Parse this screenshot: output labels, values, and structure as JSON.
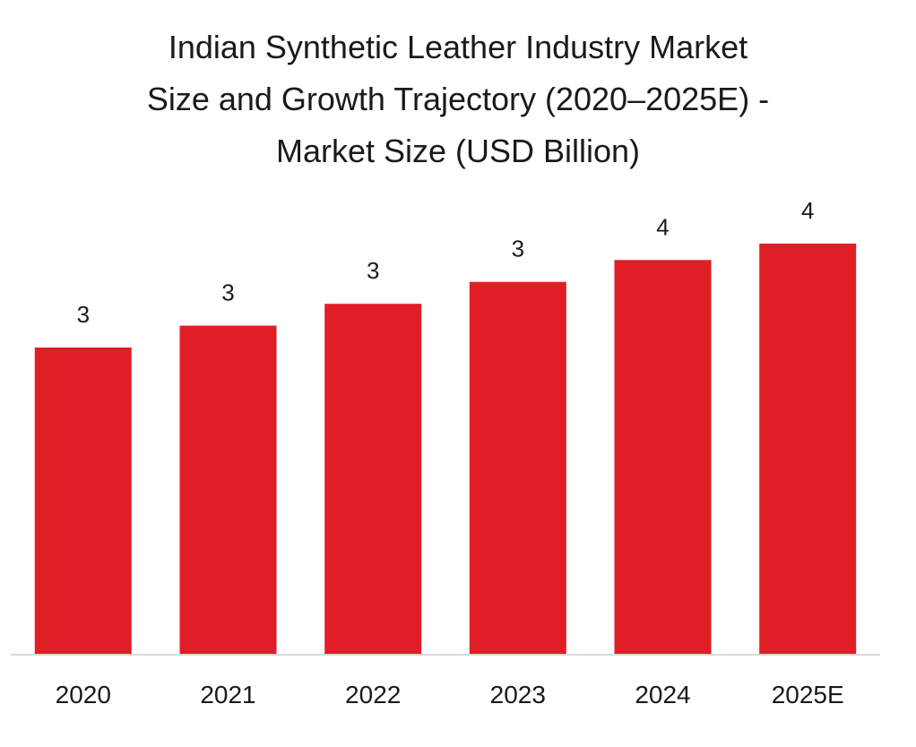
{
  "chart_data": {
    "type": "bar",
    "title_lines": [
      "Indian Synthetic Leather Industry Market",
      "Size and Growth Trajectory (2020–2025E) -",
      "Market Size (USD Billion)"
    ],
    "categories": [
      "2020",
      "2021",
      "2022",
      "2023",
      "2024",
      "2025E"
    ],
    "values": [
      2.8,
      3.0,
      3.2,
      3.4,
      3.6,
      3.75
    ],
    "data_labels": [
      "3",
      "3",
      "3",
      "3",
      "4",
      "4"
    ],
    "ylim": [
      0,
      3.75
    ],
    "grid": false,
    "legend": "none",
    "bar_color": "#e01e25"
  }
}
